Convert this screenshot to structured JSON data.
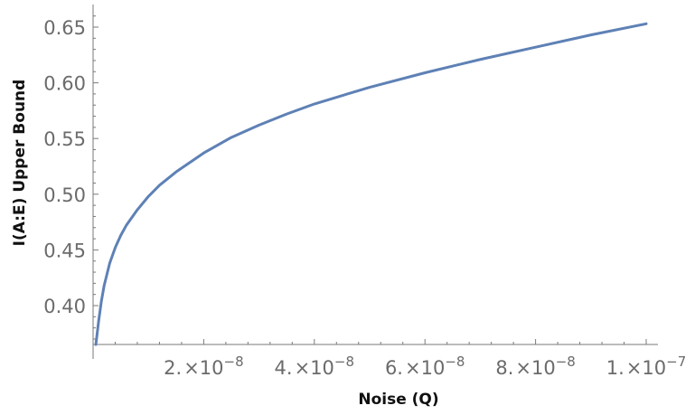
{
  "chart_data": {
    "type": "line",
    "xlabel": "Noise (Q)",
    "ylabel": "I(A:E) Upper Bound",
    "xlim": [
      0,
      1e-07
    ],
    "ylim": [
      0.365,
      0.67
    ],
    "x_ticks": [
      {
        "value": 2e-08,
        "mantissa": "2.",
        "base": "10",
        "exp": "−8"
      },
      {
        "value": 4e-08,
        "mantissa": "4.",
        "base": "10",
        "exp": "−8"
      },
      {
        "value": 6e-08,
        "mantissa": "6.",
        "base": "10",
        "exp": "−8"
      },
      {
        "value": 8e-08,
        "mantissa": "8.",
        "base": "10",
        "exp": "−8"
      },
      {
        "value": 1e-07,
        "mantissa": "1.",
        "base": "10",
        "exp": "−7"
      }
    ],
    "x_minor_ticks": [
      4e-09,
      8e-09,
      1.2e-08,
      1.6e-08,
      2.4e-08,
      2.8e-08,
      3.2e-08,
      3.6e-08,
      4.4e-08,
      4.8e-08,
      5.2e-08,
      5.6e-08,
      6.4e-08,
      6.8e-08,
      7.2e-08,
      7.6e-08,
      8.4e-08,
      8.8e-08,
      9.2e-08,
      9.6e-08
    ],
    "y_ticks": [
      {
        "value": 0.4,
        "label": "0.40"
      },
      {
        "value": 0.45,
        "label": "0.45"
      },
      {
        "value": 0.5,
        "label": "0.50"
      },
      {
        "value": 0.55,
        "label": "0.55"
      },
      {
        "value": 0.6,
        "label": "0.60"
      },
      {
        "value": 0.65,
        "label": "0.65"
      }
    ],
    "y_minor_ticks": [
      0.37,
      0.38,
      0.39,
      0.41,
      0.42,
      0.43,
      0.44,
      0.46,
      0.47,
      0.48,
      0.49,
      0.51,
      0.52,
      0.53,
      0.54,
      0.56,
      0.57,
      0.58,
      0.59,
      0.61,
      0.62,
      0.63,
      0.64,
      0.66
    ],
    "grid": false,
    "series": [
      {
        "color": "#5e81b5",
        "x": [
          5e-10,
          1e-09,
          1.5e-09,
          2e-09,
          3e-09,
          4e-09,
          5e-09,
          6e-09,
          8e-09,
          1e-08,
          1.2e-08,
          1.5e-08,
          2e-08,
          2.5e-08,
          3e-08,
          3.5e-08,
          4e-08,
          5e-08,
          6e-08,
          7e-08,
          8e-08,
          9e-08,
          1e-07
        ],
        "y": [
          0.365,
          0.386,
          0.404,
          0.418,
          0.438,
          0.452,
          0.463,
          0.472,
          0.486,
          0.498,
          0.508,
          0.52,
          0.537,
          0.551,
          0.562,
          0.572,
          0.581,
          0.596,
          0.609,
          0.621,
          0.632,
          0.643,
          0.653
        ]
      }
    ]
  }
}
